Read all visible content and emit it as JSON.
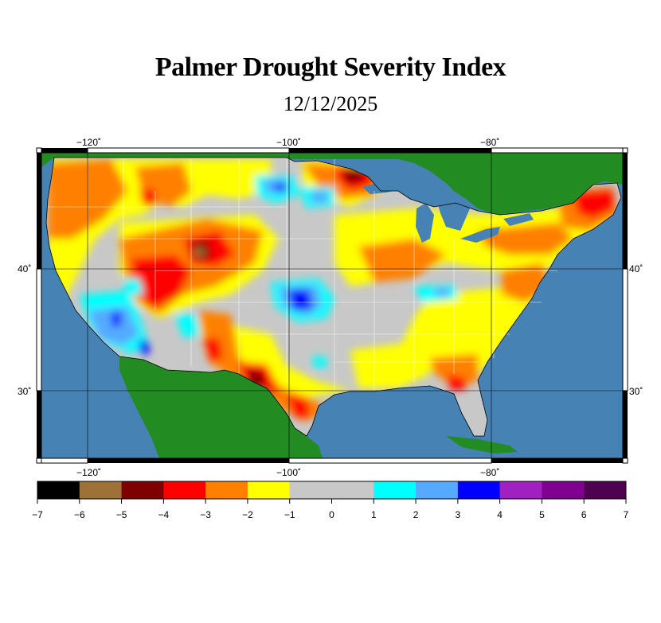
{
  "title": "Palmer Drought Severity Index",
  "date": "12/12/2025",
  "axes": {
    "lon_labels": [
      "−120˚",
      "−100˚",
      "−80˚"
    ],
    "lat_labels": [
      "40˚",
      "30˚"
    ]
  },
  "colorbar": {
    "ticks": [
      "−7",
      "−6",
      "−5",
      "−4",
      "−3",
      "−2",
      "−1",
      "0",
      "1",
      "2",
      "3",
      "4",
      "5",
      "6",
      "7"
    ],
    "colors": [
      "#000000",
      "#9e7236",
      "#7f0000",
      "#ff0000",
      "#ff8000",
      "#ffff00",
      "#c8c8c8",
      "#c8c8c8",
      "#00ffff",
      "#55aaff",
      "#0000ff",
      "#a020c0",
      "#800090",
      "#500050"
    ]
  },
  "map_colors": {
    "ocean": "#4682b4",
    "land_outside": "#228b22",
    "near_normal": "#c8c8c8"
  }
}
